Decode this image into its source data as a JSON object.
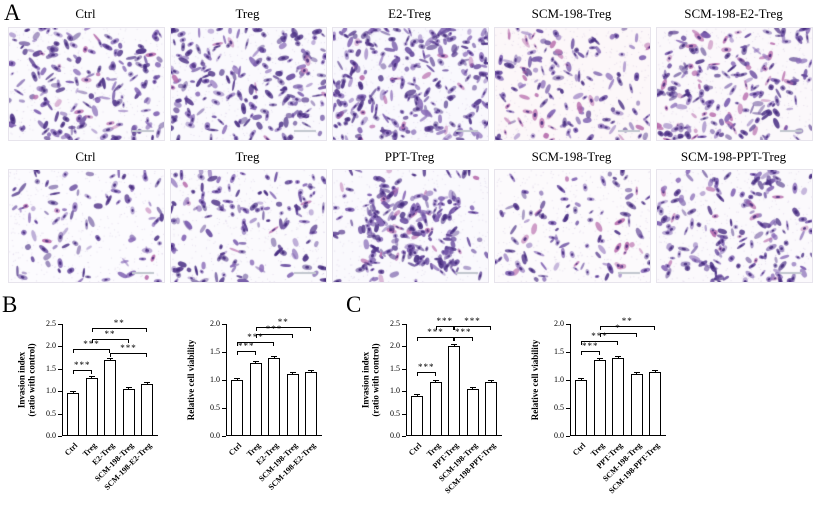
{
  "panels": {
    "a": "A",
    "b": "B",
    "c": "C"
  },
  "colors": {
    "bar_fill": "#ffffff",
    "bar_border": "#000000",
    "stain_purple": "#6b4fa1"
  },
  "microscopy": {
    "rows": [
      {
        "name": "row-1",
        "images": [
          {
            "label": "Ctrl",
            "density": 185,
            "seed": 11,
            "tint": "#fbfafd",
            "pink": 0.08,
            "cluster": 0
          },
          {
            "label": "Treg",
            "density": 205,
            "seed": 22,
            "tint": "#faf9fd",
            "pink": 0.05,
            "cluster": 0
          },
          {
            "label": "E2-Treg",
            "density": 270,
            "seed": 33,
            "tint": "#f9f8fd",
            "pink": 0.06,
            "cluster": 0
          },
          {
            "label": "SCM-198-Treg",
            "density": 150,
            "seed": 44,
            "tint": "#fcf7f9",
            "pink": 0.3,
            "cluster": 0
          },
          {
            "label": "SCM-198-E2-Treg",
            "density": 205,
            "seed": 55,
            "tint": "#fbf8fb",
            "pink": 0.22,
            "cluster": 0
          }
        ]
      },
      {
        "name": "row-2",
        "images": [
          {
            "label": "Ctrl",
            "density": 95,
            "seed": 66,
            "tint": "#fcfbfe",
            "pink": 0.05,
            "cluster": 0
          },
          {
            "label": "Treg",
            "density": 150,
            "seed": 77,
            "tint": "#fbfafd",
            "pink": 0.05,
            "cluster": 0
          },
          {
            "label": "PPT-Treg",
            "density": 245,
            "seed": 88,
            "tint": "#faf9fd",
            "pink": 0.05,
            "cluster": 1
          },
          {
            "label": "SCM-198-Treg",
            "density": 105,
            "seed": 99,
            "tint": "#fcfafc",
            "pink": 0.15,
            "cluster": 0
          },
          {
            "label": "SCM-198-PPT-Treg",
            "density": 175,
            "seed": 101,
            "tint": "#fbf9fc",
            "pink": 0.12,
            "cluster": 0
          }
        ]
      }
    ]
  },
  "chart_data": [
    {
      "type": "bar",
      "panel": "B",
      "title": "",
      "ylabel": [
        "Invasion index",
        "(ratio with control)"
      ],
      "categories": [
        "Ctrl",
        "Treg",
        "E2-Treg",
        "SCM-198-Treg",
        "SCM-198-E2-Treg"
      ],
      "values": [
        0.95,
        1.3,
        1.7,
        1.05,
        1.15
      ],
      "errors": [
        0.03,
        0.04,
        0.05,
        0.04,
        0.03
      ],
      "ylim": [
        0,
        2.5
      ],
      "yticks": [
        0,
        0.5,
        1,
        1.5,
        2,
        2.5
      ],
      "grid": false,
      "brackets": [
        {
          "a": 0,
          "b": 1,
          "label": "***",
          "y": 1.48
        },
        {
          "a": 0,
          "b": 2,
          "label": "***",
          "y": 1.95
        },
        {
          "a": 2,
          "b": 4,
          "label": "***",
          "y": 1.86
        },
        {
          "a": 1,
          "b": 3,
          "label": "**",
          "y": 2.16
        },
        {
          "a": 1,
          "b": 4,
          "label": "**",
          "y": 2.4
        }
      ]
    },
    {
      "type": "bar",
      "panel": "B",
      "title": "",
      "ylabel": [
        "Relative cell viability"
      ],
      "categories": [
        "Ctrl",
        "Treg",
        "E2-Treg",
        "SCM-198-Treg",
        "SCM-198-E2-Treg"
      ],
      "values": [
        1.0,
        1.3,
        1.4,
        1.1,
        1.15
      ],
      "errors": [
        0.02,
        0.03,
        0.03,
        0.02,
        0.02
      ],
      "ylim": [
        0,
        2.0
      ],
      "yticks": [
        0,
        0.5,
        1,
        1.5,
        2
      ],
      "grid": false,
      "brackets": [
        {
          "a": 0,
          "b": 1,
          "label": "***",
          "y": 1.52
        },
        {
          "a": 0,
          "b": 2,
          "label": "***",
          "y": 1.68
        },
        {
          "a": 1,
          "b": 3,
          "label": "***",
          "y": 1.82
        },
        {
          "a": 1,
          "b": 4,
          "label": "**",
          "y": 1.95
        }
      ]
    },
    {
      "type": "bar",
      "panel": "C",
      "title": "",
      "ylabel": [
        "Invasion index",
        "(ratio with control)"
      ],
      "categories": [
        "Ctrl",
        "Treg",
        "PPT-Treg",
        "SCM-198-Treg",
        "SCM-198-PPT-Treg"
      ],
      "values": [
        0.9,
        1.2,
        2.0,
        1.05,
        1.2
      ],
      "errors": [
        0.03,
        0.04,
        0.05,
        0.03,
        0.03
      ],
      "ylim": [
        0,
        2.5
      ],
      "yticks": [
        0,
        0.5,
        1,
        1.5,
        2,
        2.5
      ],
      "grid": false,
      "brackets": [
        {
          "a": 0,
          "b": 1,
          "label": "***",
          "y": 1.42
        },
        {
          "a": 0,
          "b": 2,
          "label": "***",
          "y": 2.2
        },
        {
          "a": 2,
          "b": 3,
          "label": "***",
          "y": 2.2
        },
        {
          "a": 1,
          "b": 2,
          "label": "***",
          "y": 2.45
        },
        {
          "a": 2,
          "b": 4,
          "label": "***",
          "y": 2.45
        }
      ]
    },
    {
      "type": "bar",
      "panel": "C",
      "title": "",
      "ylabel": [
        "Relative cell viability"
      ],
      "categories": [
        "Ctrl",
        "Treg",
        "PPT-Treg",
        "SCM-198-Treg",
        "SCM-198-PPT-Treg"
      ],
      "values": [
        1.0,
        1.35,
        1.4,
        1.1,
        1.15
      ],
      "errors": [
        0.02,
        0.03,
        0.03,
        0.02,
        0.02
      ],
      "ylim": [
        0,
        2.0
      ],
      "yticks": [
        0,
        0.5,
        1,
        1.5,
        2
      ],
      "grid": false,
      "brackets": [
        {
          "a": 0,
          "b": 1,
          "label": "***",
          "y": 1.52
        },
        {
          "a": 0,
          "b": 2,
          "label": "***",
          "y": 1.7
        },
        {
          "a": 1,
          "b": 3,
          "label": "*",
          "y": 1.84
        },
        {
          "a": 1,
          "b": 4,
          "label": "**",
          "y": 1.96
        }
      ]
    }
  ]
}
